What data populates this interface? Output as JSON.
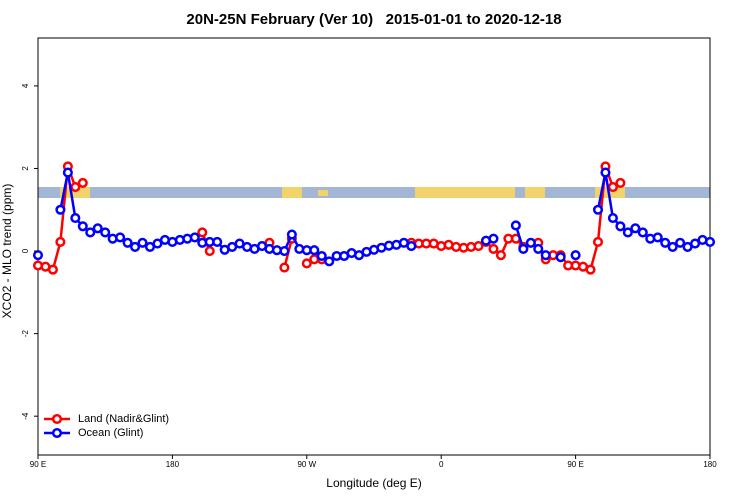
{
  "chart_data": {
    "type": "line",
    "title": "20N-25N February (Ver 10)   2015-01-01 to 2020-12-18",
    "x_label": "Longitude (deg E)",
    "y_label": "XCO2 - MLO trend (ppm)",
    "x": [
      90,
      95,
      100,
      105,
      110,
      115,
      120,
      125,
      130,
      135,
      140,
      145,
      150,
      155,
      160,
      165,
      170,
      175,
      180,
      185,
      190,
      195,
      200,
      205,
      210,
      215,
      220,
      225,
      230,
      235,
      240,
      245,
      250,
      255,
      260,
      265,
      270,
      275,
      280,
      285,
      290,
      295,
      300,
      305,
      310,
      315,
      320,
      325,
      330,
      335,
      340,
      345,
      350,
      355,
      360,
      365,
      370,
      375,
      380,
      385,
      390,
      395,
      400,
      405,
      410,
      415,
      420,
      425,
      430,
      435,
      440,
      445,
      450,
      455,
      460,
      465,
      470,
      475,
      480,
      485,
      490,
      495,
      500,
      505,
      510,
      515,
      520,
      525,
      530,
      535,
      540
    ],
    "series": [
      {
        "name": "Land (Nadir&Glint)",
        "color": "#ff0000",
        "values": [
          -0.35,
          -0.38,
          -0.45,
          0.22,
          2.05,
          1.55,
          1.65,
          null,
          null,
          null,
          null,
          null,
          null,
          null,
          null,
          null,
          null,
          null,
          null,
          null,
          null,
          null,
          0.45,
          0.0,
          null,
          null,
          null,
          null,
          null,
          null,
          null,
          0.2,
          null,
          -0.4,
          0.3,
          null,
          -0.3,
          -0.2,
          -0.2,
          null,
          null,
          null,
          null,
          null,
          null,
          null,
          null,
          null,
          null,
          null,
          0.2,
          0.18,
          0.18,
          0.18,
          0.12,
          0.15,
          0.1,
          0.08,
          0.1,
          0.12,
          0.22,
          0.05,
          -0.1,
          0.3,
          0.3,
          0.1,
          null,
          0.2,
          -0.2,
          -0.1,
          -0.1,
          -0.35,
          -0.35,
          -0.38,
          -0.45,
          0.22,
          2.05,
          1.55,
          1.65,
          null,
          null,
          null,
          null,
          null,
          null,
          null,
          null,
          null,
          null,
          null,
          null
        ]
      },
      {
        "name": "Ocean (Glint)",
        "color": "#0000ff",
        "values": [
          -0.1,
          null,
          null,
          1.0,
          1.9,
          0.8,
          0.6,
          0.45,
          0.55,
          0.45,
          0.3,
          0.33,
          0.2,
          0.1,
          0.2,
          0.1,
          0.18,
          0.27,
          0.22,
          0.27,
          0.3,
          0.33,
          0.2,
          0.22,
          0.22,
          0.03,
          0.1,
          0.18,
          0.1,
          0.05,
          0.12,
          0.05,
          0.02,
          0.0,
          0.4,
          0.05,
          0.02,
          0.02,
          -0.12,
          -0.25,
          -0.12,
          -0.12,
          -0.05,
          -0.1,
          -0.02,
          0.03,
          0.08,
          0.13,
          0.15,
          0.2,
          0.12,
          null,
          null,
          null,
          null,
          null,
          null,
          null,
          null,
          null,
          0.25,
          0.3,
          null,
          null,
          0.62,
          0.05,
          0.2,
          0.05,
          -0.1,
          null,
          -0.15,
          null,
          -0.1,
          null,
          null,
          1.0,
          1.9,
          0.8,
          0.6,
          0.45,
          0.55,
          0.45,
          0.3,
          0.33,
          0.2,
          0.1,
          0.2,
          0.1,
          0.18,
          0.27,
          0.22
        ]
      }
    ],
    "xlim": [
      90,
      540
    ],
    "xticks": [
      {
        "value": 90,
        "label": "90 E"
      },
      180,
      {
        "value": 270,
        "label": "90 W"
      },
      {
        "value": 360,
        "label": "0"
      },
      {
        "value": 450,
        "label": "90 E"
      },
      {
        "value": 540,
        "label": "180"
      }
    ],
    "ylim": [
      -4.94,
      5.16
    ],
    "yticks": [
      -4,
      -2,
      0,
      2,
      4
    ],
    "legend": "bottom-left"
  }
}
